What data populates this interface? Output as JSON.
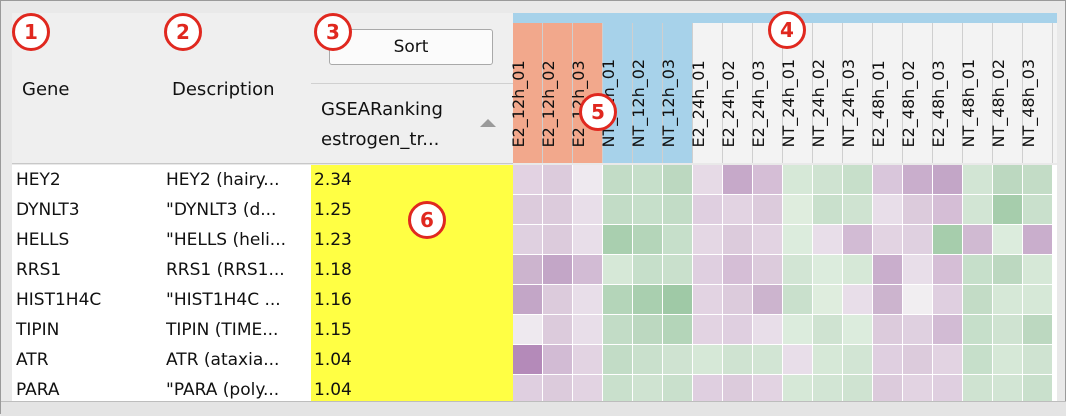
{
  "columns": {
    "gene_label": "Gene",
    "description_label": "Description",
    "sort_button": "Sort",
    "ranking_title_line1": "GSEARanking",
    "ranking_title_line2": "estrogen_tr..."
  },
  "heatmap_columns": [
    {
      "label": "E2_12h_01",
      "bg": "#f2a88c"
    },
    {
      "label": "E2_12h_02",
      "bg": "#f2a88c"
    },
    {
      "label": "E2_12h_03",
      "bg": "#f2a88c"
    },
    {
      "label": "NT_12h_01",
      "bg": "#a7d2ea"
    },
    {
      "label": "NT_12h_02",
      "bg": "#a7d2ea"
    },
    {
      "label": "NT_12h_03",
      "bg": "#a7d2ea"
    },
    {
      "label": "E2_24h_01",
      "bg": "#f3f3f3"
    },
    {
      "label": "E2_24h_02",
      "bg": "#f3f3f3"
    },
    {
      "label": "E2_24h_03",
      "bg": "#f3f3f3"
    },
    {
      "label": "NT_24h_01",
      "bg": "#f3f3f3"
    },
    {
      "label": "NT_24h_02",
      "bg": "#f3f3f3"
    },
    {
      "label": "NT_24h_03",
      "bg": "#f3f3f3"
    },
    {
      "label": "E2_48h_01",
      "bg": "#f3f3f3"
    },
    {
      "label": "E2_48h_02",
      "bg": "#f3f3f3"
    },
    {
      "label": "E2_48h_03",
      "bg": "#f3f3f3"
    },
    {
      "label": "NT_48h_01",
      "bg": "#f3f3f3"
    },
    {
      "label": "NT_48h_02",
      "bg": "#f3f3f3"
    },
    {
      "label": "NT_48h_03",
      "bg": "#f3f3f3"
    }
  ],
  "rows": [
    {
      "gene": "HEY2",
      "description": "HEY2 (hairy...",
      "rank": "2.34",
      "colors": [
        "#e2d2e2",
        "#dccbdc",
        "#eee9ef",
        "#c2dcc6",
        "#c6dfca",
        "#bcd8c0",
        "#e6dae6",
        "#c6a9c9",
        "#d5bed6",
        "#d6e8d7",
        "#cfe3d1",
        "#c7dfca",
        "#d9c6db",
        "#c9aecc",
        "#c3a6c7",
        "#d2e5d4",
        "#bcd8c0",
        "#c3dcc6"
      ]
    },
    {
      "gene": "DYNLT3",
      "description": "\"DYNLT3 (d...",
      "rank": "1.25",
      "colors": [
        "#dccbdc",
        "#dccbdc",
        "#e8dee9",
        "#c2dcc6",
        "#c6dfca",
        "#c2dcc6",
        "#dfcfe0",
        "#e2d3e2",
        "#dccbdc",
        "#dfedde",
        "#c9e0cc",
        "#cfe3d1",
        "#e8dee9",
        "#dccbdc",
        "#d5bed6",
        "#d2e5d4",
        "#a6cdac",
        "#c9e0cc"
      ]
    },
    {
      "gene": "HELLS",
      "description": "\"HELLS (heli...",
      "rank": "1.23",
      "colors": [
        "#dfd0e0",
        "#dccbdc",
        "#e8dee9",
        "#a9cfaf",
        "#b4d5b9",
        "#c6dfca",
        "#e4d7e4",
        "#dccbdc",
        "#e2d3e2",
        "#dcecdd",
        "#e8dee9",
        "#d2bbd4",
        "#e2d3e2",
        "#dfd0e0",
        "#a6cdac",
        "#d0bad2",
        "#dcecdd",
        "#c9aecc"
      ]
    },
    {
      "gene": "RRS1",
      "description": "RRS1 (RRS1...",
      "rank": "1.18",
      "colors": [
        "#ccb4ce",
        "#c3a6c7",
        "#d2bbd4",
        "#d6e8d7",
        "#c6dfca",
        "#c9e0cc",
        "#dfcfe0",
        "#d5bed6",
        "#dccbdc",
        "#d2e5d4",
        "#dcecdd",
        "#d6e8d7",
        "#c9aecc",
        "#e8dee9",
        "#d5bed6",
        "#c6dfca",
        "#bcd8c0",
        "#d6e8d7"
      ]
    },
    {
      "gene": "HIST1H4C",
      "description": "\"HIST1H4C ...",
      "rank": "1.16",
      "colors": [
        "#c3a6c7",
        "#dccbdc",
        "#e8dee9",
        "#b4d5b9",
        "#a9cfaf",
        "#9fc9a6",
        "#e2d3e2",
        "#dccbdc",
        "#ccb4ce",
        "#c9e0cc",
        "#dfedde",
        "#e8dee9",
        "#ccb4ce",
        "#f1eef1",
        "#dfcfe0",
        "#c3dcc6",
        "#d6e8d7",
        "#d6e8d7"
      ]
    },
    {
      "gene": "TIPIN",
      "description": "TIPIN (TIME...",
      "rank": "1.15",
      "colors": [
        "#eee9ef",
        "#dccbdc",
        "#e8dee9",
        "#c2dcc6",
        "#bcd8c0",
        "#b4d5b9",
        "#e2d3e2",
        "#dfcfe0",
        "#e8dee9",
        "#dcecdd",
        "#cfe3d1",
        "#dcecdd",
        "#dccbdc",
        "#dfd0e0",
        "#d2bbd4",
        "#c6dfca",
        "#cfe3d1",
        "#bcd8c0"
      ]
    },
    {
      "gene": "ATR",
      "description": "ATR (ataxia...",
      "rank": "1.04",
      "colors": [
        "#b48ab9",
        "#d2bbd4",
        "#e2d3e2",
        "#c2dcc6",
        "#c9e0cc",
        "#cfe3d1",
        "#d6e8d7",
        "#cfe3d1",
        "#d2e5d4",
        "#e8dee9",
        "#d6e8d7",
        "#d2e5d4",
        "#dfcfe0",
        "#dccbdc",
        "#e2d3e2",
        "#c6dfca",
        "#d6e8d7",
        "#cfe3d1"
      ]
    },
    {
      "gene": "PARA",
      "description": "\"PARA (poly...",
      "rank": "1.04",
      "colors": [
        "#dfcfe0",
        "#dccbdc",
        "#e2d3e2",
        "#c9e0cc",
        "#cfe3d1",
        "#c9e0cc",
        "#dfcfe0",
        "#dccbdc",
        "#e2d3e2",
        "#d6e8d7",
        "#d2e5d4",
        "#cfe3d1",
        "#dccbdc",
        "#e2d3e2",
        "#dfcfe0",
        "#cfe3d1",
        "#d2e5d4",
        "#c9e0cc"
      ]
    }
  ],
  "annotations": [
    "1",
    "2",
    "3",
    "4",
    "5",
    "6"
  ]
}
